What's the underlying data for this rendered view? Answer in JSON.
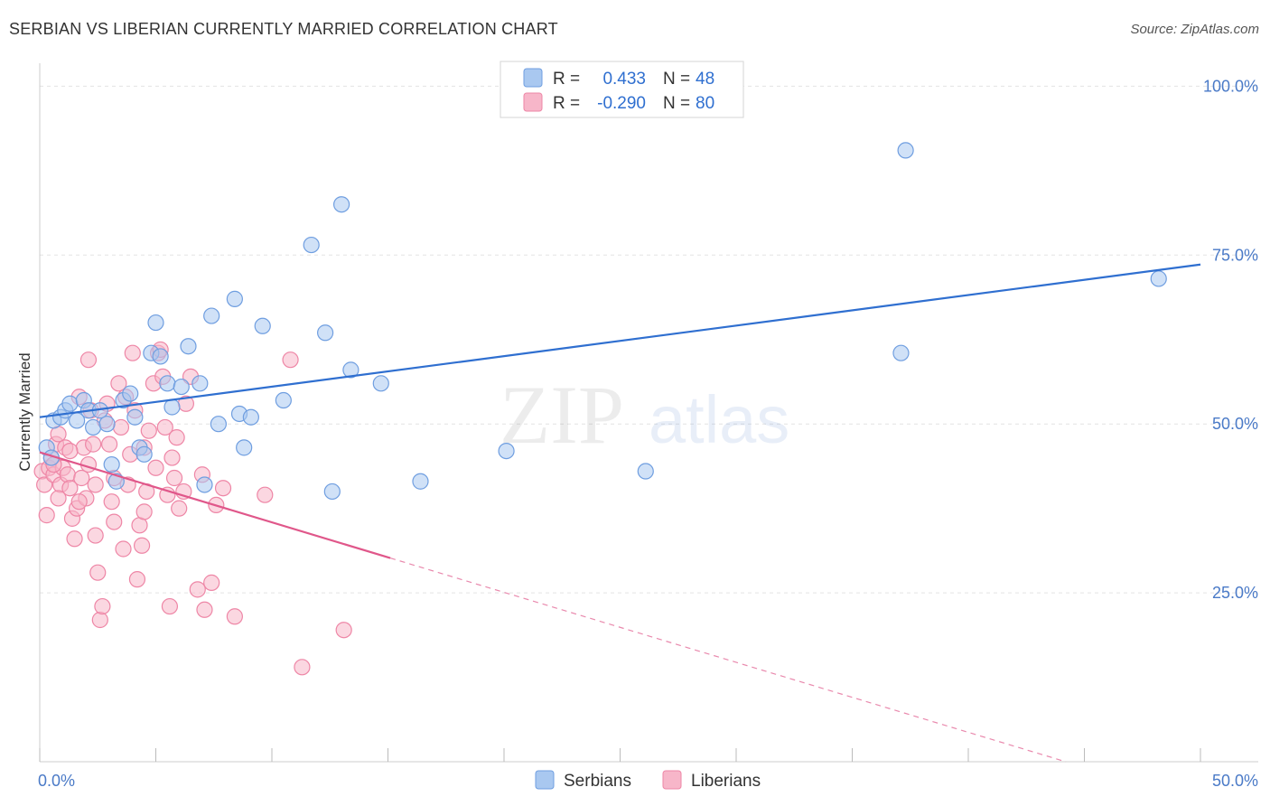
{
  "title": "SERBIAN VS LIBERIAN CURRENTLY MARRIED CORRELATION CHART",
  "source": "Source: ZipAtlas.com",
  "watermark": {
    "part1": "ZIP",
    "part2": "atlas"
  },
  "colors": {
    "serbians_fill": "#a9c8f0",
    "serbians_stroke": "#6f9ee0",
    "serbians_line": "#2f6fd0",
    "liberians_fill": "#f7b6c9",
    "liberians_stroke": "#ee86a6",
    "liberians_line": "#e0578a",
    "grid": "#e3e3e3",
    "tick_label": "#4a7ac7"
  },
  "legend": {
    "rows": [
      {
        "r_label": "R =",
        "r_value": "0.433",
        "n_label": "N =",
        "n_value": "48"
      },
      {
        "r_label": "R =",
        "r_value": "-0.290",
        "n_label": "N =",
        "n_value": "80"
      }
    ],
    "bottom": [
      "Serbians",
      "Liberians"
    ]
  },
  "chart_data": {
    "type": "scatter",
    "title": "SERBIAN VS LIBERIAN CURRENTLY MARRIED CORRELATION CHART",
    "xlabel": "",
    "ylabel": "Currently Married",
    "xlim": [
      0,
      50
    ],
    "ylim": [
      0,
      105
    ],
    "x_tick_labels": [
      "0.0%",
      "50.0%"
    ],
    "y_tick_labels": [
      {
        "value": 25,
        "label": "25.0%"
      },
      {
        "value": 50,
        "label": "50.0%"
      },
      {
        "value": 75,
        "label": "75.0%"
      },
      {
        "value": 100,
        "label": "100.0%"
      }
    ],
    "series": [
      {
        "name": "Serbians",
        "r": 0.433,
        "n": 48,
        "trend": {
          "x": [
            0,
            50
          ],
          "y": [
            51,
            73.6
          ],
          "dashed_from_x": null
        },
        "points": [
          [
            0.3,
            46.5
          ],
          [
            0.5,
            45
          ],
          [
            0.6,
            50.5
          ],
          [
            0.9,
            51
          ],
          [
            1.1,
            52
          ],
          [
            1.3,
            53
          ],
          [
            1.6,
            50.5
          ],
          [
            1.9,
            53.5
          ],
          [
            2.1,
            52
          ],
          [
            2.3,
            49.5
          ],
          [
            2.6,
            52
          ],
          [
            2.9,
            50
          ],
          [
            3.1,
            44
          ],
          [
            3.3,
            41.5
          ],
          [
            3.6,
            53.5
          ],
          [
            3.9,
            54.5
          ],
          [
            4.1,
            51
          ],
          [
            4.3,
            46.5
          ],
          [
            4.5,
            45.5
          ],
          [
            4.8,
            60.5
          ],
          [
            5.0,
            65
          ],
          [
            5.2,
            60
          ],
          [
            5.5,
            56
          ],
          [
            5.7,
            52.5
          ],
          [
            6.1,
            55.5
          ],
          [
            6.4,
            61.5
          ],
          [
            6.9,
            56
          ],
          [
            7.1,
            41
          ],
          [
            7.4,
            66
          ],
          [
            7.7,
            50
          ],
          [
            8.4,
            68.5
          ],
          [
            8.6,
            51.5
          ],
          [
            8.8,
            46.5
          ],
          [
            9.1,
            51
          ],
          [
            9.6,
            64.5
          ],
          [
            10.5,
            53.5
          ],
          [
            11.7,
            76.5
          ],
          [
            12.3,
            63.5
          ],
          [
            12.6,
            40
          ],
          [
            13.0,
            82.5
          ],
          [
            13.4,
            58
          ],
          [
            14.7,
            56
          ],
          [
            16.4,
            41.5
          ],
          [
            20.1,
            46
          ],
          [
            26.1,
            43
          ],
          [
            37.1,
            60.5
          ],
          [
            37.3,
            90.5
          ],
          [
            48.2,
            71.5
          ]
        ]
      },
      {
        "name": "Liberians",
        "r": -0.29,
        "n": 80,
        "trend": {
          "x": [
            0,
            44.2
          ],
          "y": [
            45.8,
            0
          ],
          "solid_until_x": 15.1
        },
        "points": [
          [
            0.1,
            43
          ],
          [
            0.2,
            41
          ],
          [
            0.3,
            36.5
          ],
          [
            0.4,
            43.5
          ],
          [
            0.5,
            45
          ],
          [
            0.6,
            42.5
          ],
          [
            0.7,
            47
          ],
          [
            0.8,
            48.5
          ],
          [
            0.9,
            41
          ],
          [
            1.0,
            43.5
          ],
          [
            1.1,
            46.5
          ],
          [
            1.2,
            42.5
          ],
          [
            1.3,
            40.5
          ],
          [
            1.4,
            36
          ],
          [
            1.5,
            33
          ],
          [
            1.6,
            37.5
          ],
          [
            1.7,
            54
          ],
          [
            1.8,
            42
          ],
          [
            1.9,
            46.5
          ],
          [
            2.0,
            39
          ],
          [
            2.1,
            44
          ],
          [
            2.2,
            52
          ],
          [
            2.3,
            47
          ],
          [
            2.4,
            33.5
          ],
          [
            2.5,
            28
          ],
          [
            2.6,
            21
          ],
          [
            2.7,
            23
          ],
          [
            2.8,
            50.5
          ],
          [
            2.9,
            53
          ],
          [
            3.0,
            47
          ],
          [
            3.1,
            38.5
          ],
          [
            3.2,
            42
          ],
          [
            3.4,
            56
          ],
          [
            3.5,
            49.5
          ],
          [
            3.6,
            31.5
          ],
          [
            3.7,
            54
          ],
          [
            3.8,
            41
          ],
          [
            3.9,
            45.5
          ],
          [
            4.0,
            60.5
          ],
          [
            4.1,
            52
          ],
          [
            4.2,
            27
          ],
          [
            4.3,
            35
          ],
          [
            4.4,
            32
          ],
          [
            4.5,
            46.5
          ],
          [
            4.6,
            40
          ],
          [
            4.7,
            49
          ],
          [
            4.9,
            56
          ],
          [
            5.0,
            43.5
          ],
          [
            5.1,
            60.5
          ],
          [
            5.2,
            61
          ],
          [
            5.3,
            57
          ],
          [
            5.4,
            49.5
          ],
          [
            5.5,
            39.5
          ],
          [
            5.6,
            23
          ],
          [
            5.7,
            45
          ],
          [
            5.8,
            42
          ],
          [
            6.0,
            37.5
          ],
          [
            6.2,
            40
          ],
          [
            6.5,
            57
          ],
          [
            6.8,
            25.5
          ],
          [
            7.1,
            22.5
          ],
          [
            7.4,
            26.5
          ],
          [
            7.6,
            38
          ],
          [
            7.9,
            40.5
          ],
          [
            8.4,
            21.5
          ],
          [
            9.7,
            39.5
          ],
          [
            10.8,
            59.5
          ],
          [
            11.3,
            14
          ],
          [
            13.1,
            19.5
          ],
          [
            1.3,
            46
          ],
          [
            2.1,
            59.5
          ],
          [
            0.8,
            39
          ],
          [
            1.7,
            38.5
          ],
          [
            2.4,
            41
          ],
          [
            4.5,
            37
          ],
          [
            3.2,
            35.5
          ],
          [
            0.6,
            44
          ],
          [
            5.9,
            48
          ],
          [
            6.3,
            53
          ],
          [
            7.0,
            42.5
          ]
        ]
      }
    ]
  }
}
